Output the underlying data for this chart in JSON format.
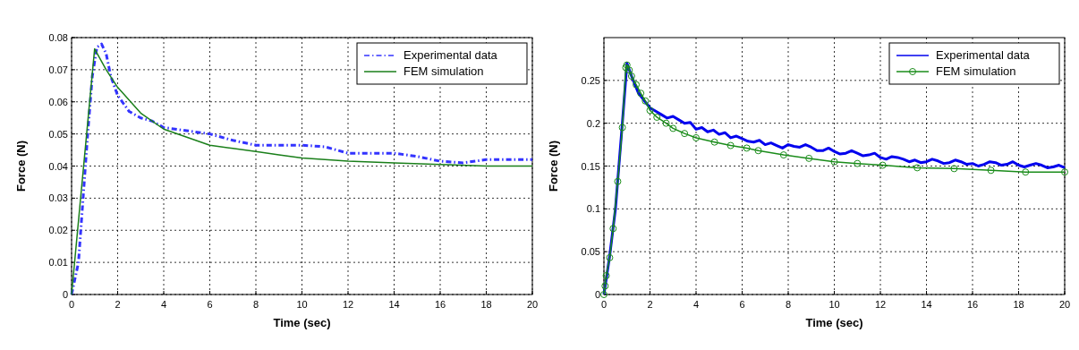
{
  "chart_data": [
    {
      "type": "line",
      "xlabel": "Time (sec)",
      "ylabel": "Force (N)",
      "xlim": [
        0,
        20
      ],
      "ylim": [
        0,
        0.08
      ],
      "xticks": [
        0,
        2,
        4,
        6,
        8,
        10,
        12,
        14,
        16,
        18,
        20
      ],
      "yticks": [
        0,
        0.01,
        0.02,
        0.03,
        0.04,
        0.05,
        0.06,
        0.07,
        0.08
      ],
      "grid": true,
      "legend": "top right",
      "series": [
        {
          "name": "Experimental data",
          "color": "#3333ff",
          "line_style": "dashed",
          "marker": "none",
          "x": [
            0,
            0.3,
            0.5,
            0.7,
            0.9,
            1.1,
            1.3,
            1.5,
            1.7,
            2,
            2.5,
            3,
            3.5,
            4,
            5,
            6,
            7,
            8,
            9,
            10,
            11,
            12,
            13,
            14,
            15,
            16,
            17,
            18,
            19,
            20
          ],
          "values": [
            0,
            0.01,
            0.03,
            0.05,
            0.068,
            0.077,
            0.078,
            0.075,
            0.068,
            0.062,
            0.057,
            0.055,
            0.054,
            0.052,
            0.051,
            0.05,
            0.048,
            0.0465,
            0.0465,
            0.0465,
            0.046,
            0.044,
            0.044,
            0.044,
            0.043,
            0.0415,
            0.041,
            0.042,
            0.042,
            0.042
          ]
        },
        {
          "name": "FEM simulation",
          "color": "#1a7f1a",
          "line_style": "solid",
          "marker": "none",
          "x": [
            0,
            1,
            1.5,
            2,
            3,
            4,
            5,
            6,
            7,
            8,
            9,
            10,
            12,
            14,
            16,
            18,
            20
          ],
          "values": [
            0,
            0.0765,
            0.07,
            0.0645,
            0.0565,
            0.0515,
            0.049,
            0.0465,
            0.0455,
            0.0445,
            0.0435,
            0.0425,
            0.0415,
            0.041,
            0.0405,
            0.04,
            0.04
          ]
        }
      ]
    },
    {
      "type": "line",
      "xlabel": "Time (sec)",
      "ylabel": "Force (N)",
      "xlim": [
        0,
        20
      ],
      "ylim": [
        0,
        0.3
      ],
      "xticks": [
        0,
        2,
        4,
        6,
        8,
        10,
        12,
        14,
        16,
        18,
        20
      ],
      "yticks": [
        0,
        0.05,
        0.1,
        0.15,
        0.2,
        0.25
      ],
      "grid": true,
      "legend": "top right",
      "series": [
        {
          "name": "Experimental data",
          "color": "#0000ee",
          "line_style": "solid",
          "marker": "none",
          "x": [
            0,
            0.25,
            0.5,
            0.8,
            1,
            1.2,
            1.5,
            2,
            2.25,
            2.5,
            2.75,
            3,
            3.25,
            3.5,
            3.75,
            4,
            4.25,
            4.5,
            4.75,
            5,
            5.25,
            5.5,
            5.75,
            6,
            6.25,
            6.5,
            6.75,
            7,
            7.25,
            7.5,
            7.75,
            8,
            8.25,
            8.5,
            8.75,
            9,
            9.25,
            9.5,
            9.75,
            10,
            10.25,
            10.5,
            10.75,
            11,
            11.25,
            11.5,
            11.75,
            12,
            12.25,
            12.5,
            12.75,
            13,
            13.25,
            13.5,
            13.75,
            14,
            14.25,
            14.5,
            14.75,
            15,
            15.25,
            15.5,
            15.75,
            16,
            16.25,
            16.5,
            16.75,
            17,
            17.25,
            17.5,
            17.75,
            18,
            18.25,
            18.5,
            18.75,
            19,
            19.25,
            19.5,
            19.75,
            20
          ],
          "values": [
            0,
            0.045,
            0.1,
            0.2,
            0.27,
            0.255,
            0.235,
            0.218,
            0.214,
            0.21,
            0.206,
            0.208,
            0.204,
            0.2,
            0.201,
            0.193,
            0.195,
            0.19,
            0.192,
            0.187,
            0.189,
            0.183,
            0.185,
            0.182,
            0.179,
            0.178,
            0.18,
            0.175,
            0.177,
            0.174,
            0.171,
            0.175,
            0.173,
            0.172,
            0.175,
            0.172,
            0.168,
            0.168,
            0.171,
            0.167,
            0.164,
            0.165,
            0.168,
            0.165,
            0.162,
            0.163,
            0.165,
            0.16,
            0.158,
            0.161,
            0.16,
            0.158,
            0.155,
            0.157,
            0.154,
            0.155,
            0.158,
            0.156,
            0.153,
            0.154,
            0.157,
            0.155,
            0.152,
            0.153,
            0.15,
            0.152,
            0.155,
            0.154,
            0.151,
            0.152,
            0.155,
            0.151,
            0.149,
            0.151,
            0.153,
            0.151,
            0.148,
            0.149,
            0.151,
            0.148
          ]
        },
        {
          "name": "FEM simulation",
          "color": "#1a8c1a",
          "line_style": "solid",
          "marker": "circle",
          "x": [
            0,
            0.05,
            0.1,
            0.25,
            0.4,
            0.6,
            0.8,
            0.95,
            1,
            1.1,
            1.2,
            1.4,
            1.6,
            1.8,
            2,
            2.3,
            2.7,
            3,
            3.5,
            4,
            4.8,
            5.5,
            6.2,
            6.7,
            7.8,
            8.9,
            10,
            11,
            12.1,
            13.6,
            15.2,
            16.8,
            18.3,
            20
          ],
          "values": [
            0,
            0.01,
            0.022,
            0.043,
            0.077,
            0.132,
            0.195,
            0.265,
            0.268,
            0.262,
            0.255,
            0.245,
            0.235,
            0.226,
            0.215,
            0.207,
            0.2,
            0.194,
            0.188,
            0.183,
            0.178,
            0.174,
            0.171,
            0.168,
            0.163,
            0.159,
            0.155,
            0.153,
            0.151,
            0.148,
            0.147,
            0.145,
            0.143,
            0.143
          ]
        }
      ]
    }
  ]
}
